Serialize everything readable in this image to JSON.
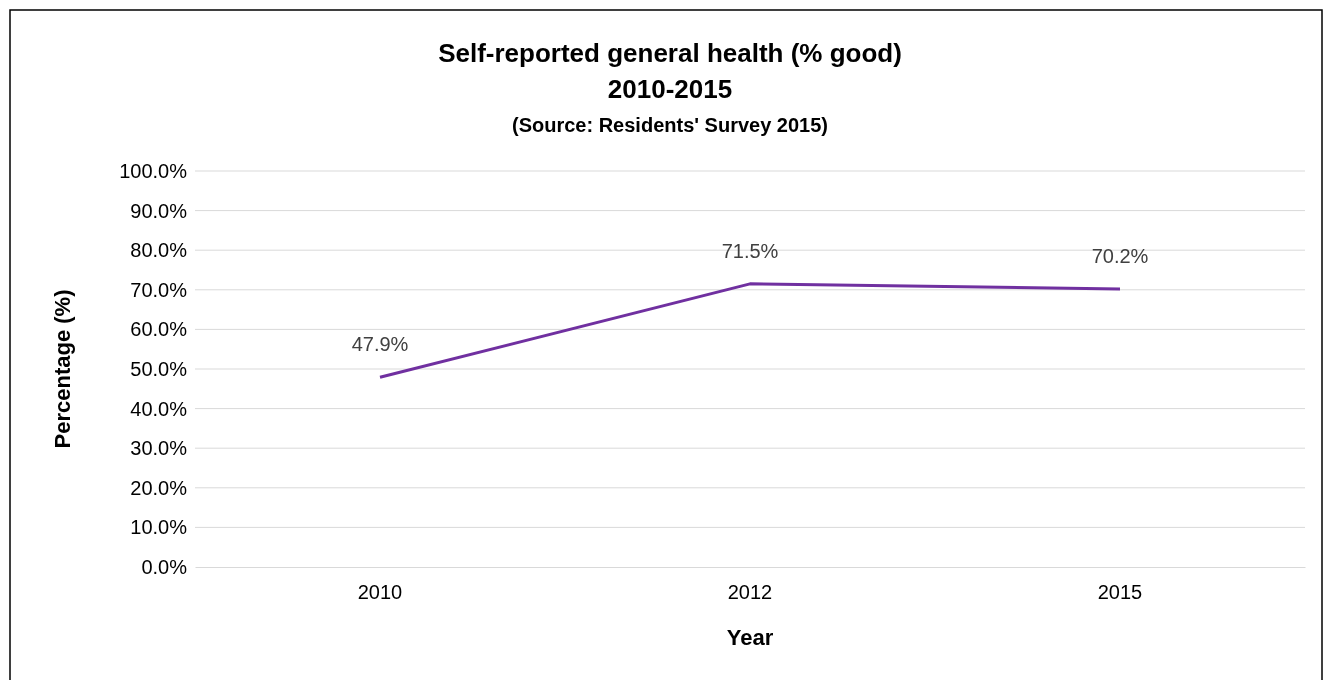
{
  "chart_data": {
    "type": "line",
    "title": "Self-reported general health (% good)",
    "subtitle": "2010-2015",
    "annotations": [
      "(Source: Residents' Survey 2015)"
    ],
    "xlabel": "Year",
    "ylabel": "Percentage (%)",
    "categories": [
      "2010",
      "2012",
      "2015"
    ],
    "series": [
      {
        "color": "#7030a0",
        "values": [
          47.9,
          71.5,
          70.2
        ],
        "value_labels": [
          "47.9%",
          "71.5%",
          "70.2%"
        ]
      }
    ],
    "ylim": [
      0,
      100
    ],
    "yticks": [
      {
        "value": 0,
        "label": "0.0%"
      },
      {
        "value": 10,
        "label": "10.0%"
      },
      {
        "value": 20,
        "label": "20.0%"
      },
      {
        "value": 30,
        "label": "30.0%"
      },
      {
        "value": 40,
        "label": "40.0%"
      },
      {
        "value": 50,
        "label": "50.0%"
      },
      {
        "value": 60,
        "label": "60.0%"
      },
      {
        "value": 70,
        "label": "70.0%"
      },
      {
        "value": 80,
        "label": "80.0%"
      },
      {
        "value": 90,
        "label": "90.0%"
      },
      {
        "value": 100,
        "label": "100.0%"
      }
    ],
    "grid": "y",
    "marker": "none",
    "line_style": "solid"
  }
}
